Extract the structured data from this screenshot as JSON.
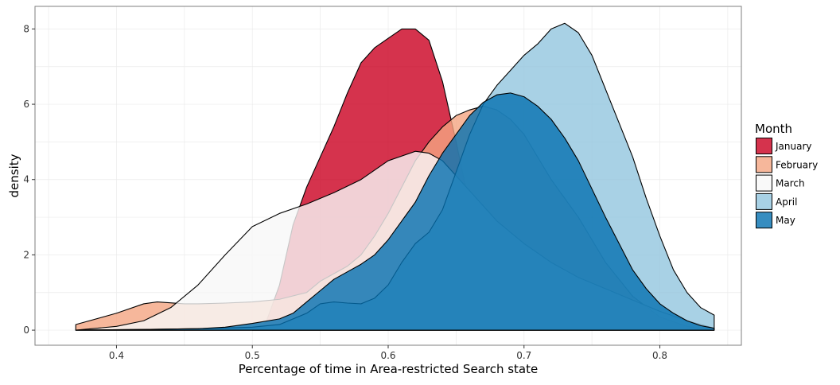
{
  "chart_data": {
    "type": "area",
    "subtype": "density",
    "title": "",
    "xlabel": "Percentage of time in Area-restricted Search state",
    "ylabel": "density",
    "xlim": [
      0.34,
      0.86
    ],
    "ylim": [
      -0.4,
      8.6
    ],
    "x_ticks": [
      0.4,
      0.5,
      0.6,
      0.7,
      0.8
    ],
    "y_ticks": [
      0,
      2,
      4,
      6,
      8
    ],
    "grid": true,
    "legend": {
      "title": "Month",
      "placement": "right"
    },
    "series": [
      {
        "name": "January",
        "color": "#ca0020",
        "opacity": 0.8,
        "points": [
          [
            0.5,
            0.0
          ],
          [
            0.51,
            0.2
          ],
          [
            0.52,
            1.2
          ],
          [
            0.53,
            2.8
          ],
          [
            0.54,
            3.8
          ],
          [
            0.55,
            4.6
          ],
          [
            0.56,
            5.4
          ],
          [
            0.57,
            6.3
          ],
          [
            0.58,
            7.1
          ],
          [
            0.59,
            7.5
          ],
          [
            0.6,
            7.75
          ],
          [
            0.61,
            8.0
          ],
          [
            0.62,
            8.0
          ],
          [
            0.63,
            7.7
          ],
          [
            0.64,
            6.6
          ],
          [
            0.65,
            5.0
          ],
          [
            0.66,
            3.3
          ],
          [
            0.67,
            2.5
          ],
          [
            0.68,
            2.1
          ],
          [
            0.69,
            1.8
          ],
          [
            0.7,
            1.5
          ],
          [
            0.72,
            1.1
          ],
          [
            0.74,
            0.85
          ],
          [
            0.76,
            0.7
          ],
          [
            0.78,
            0.5
          ],
          [
            0.8,
            0.3
          ],
          [
            0.82,
            0.1
          ],
          [
            0.84,
            0.0
          ]
        ]
      },
      {
        "name": "February",
        "color": "#f4a582",
        "opacity": 0.8,
        "points": [
          [
            0.37,
            0.15
          ],
          [
            0.4,
            0.45
          ],
          [
            0.42,
            0.7
          ],
          [
            0.43,
            0.75
          ],
          [
            0.45,
            0.7
          ],
          [
            0.46,
            0.7
          ],
          [
            0.48,
            0.72
          ],
          [
            0.5,
            0.75
          ],
          [
            0.52,
            0.82
          ],
          [
            0.54,
            1.0
          ],
          [
            0.55,
            1.3
          ],
          [
            0.57,
            1.7
          ],
          [
            0.58,
            2.0
          ],
          [
            0.59,
            2.5
          ],
          [
            0.6,
            3.1
          ],
          [
            0.61,
            3.8
          ],
          [
            0.62,
            4.5
          ],
          [
            0.63,
            5.0
          ],
          [
            0.64,
            5.4
          ],
          [
            0.65,
            5.7
          ],
          [
            0.66,
            5.85
          ],
          [
            0.67,
            5.95
          ],
          [
            0.68,
            5.85
          ],
          [
            0.69,
            5.6
          ],
          [
            0.7,
            5.2
          ],
          [
            0.71,
            4.6
          ],
          [
            0.72,
            4.0
          ],
          [
            0.74,
            3.0
          ],
          [
            0.76,
            1.8
          ],
          [
            0.78,
            0.9
          ],
          [
            0.8,
            0.35
          ],
          [
            0.82,
            0.1
          ],
          [
            0.84,
            0.0
          ]
        ]
      },
      {
        "name": "March",
        "color": "#f7f7f7",
        "opacity": 0.8,
        "points": [
          [
            0.37,
            0.0
          ],
          [
            0.4,
            0.1
          ],
          [
            0.42,
            0.25
          ],
          [
            0.44,
            0.6
          ],
          [
            0.46,
            1.2
          ],
          [
            0.48,
            2.0
          ],
          [
            0.5,
            2.75
          ],
          [
            0.52,
            3.1
          ],
          [
            0.54,
            3.35
          ],
          [
            0.56,
            3.65
          ],
          [
            0.58,
            4.0
          ],
          [
            0.6,
            4.5
          ],
          [
            0.62,
            4.75
          ],
          [
            0.63,
            4.7
          ],
          [
            0.64,
            4.5
          ],
          [
            0.65,
            4.1
          ],
          [
            0.66,
            3.7
          ],
          [
            0.67,
            3.3
          ],
          [
            0.68,
            2.9
          ],
          [
            0.7,
            2.3
          ],
          [
            0.72,
            1.8
          ],
          [
            0.74,
            1.4
          ],
          [
            0.76,
            1.1
          ],
          [
            0.78,
            0.8
          ],
          [
            0.8,
            0.5
          ],
          [
            0.82,
            0.25
          ],
          [
            0.84,
            0.05
          ]
        ]
      },
      {
        "name": "April",
        "color": "#92c5de",
        "opacity": 0.8,
        "points": [
          [
            0.37,
            0.0
          ],
          [
            0.42,
            0.02
          ],
          [
            0.46,
            0.04
          ],
          [
            0.5,
            0.08
          ],
          [
            0.52,
            0.15
          ],
          [
            0.54,
            0.45
          ],
          [
            0.55,
            0.7
          ],
          [
            0.56,
            0.75
          ],
          [
            0.57,
            0.72
          ],
          [
            0.58,
            0.7
          ],
          [
            0.59,
            0.85
          ],
          [
            0.6,
            1.2
          ],
          [
            0.61,
            1.8
          ],
          [
            0.62,
            2.3
          ],
          [
            0.63,
            2.6
          ],
          [
            0.64,
            3.2
          ],
          [
            0.65,
            4.2
          ],
          [
            0.66,
            5.2
          ],
          [
            0.67,
            6.0
          ],
          [
            0.68,
            6.5
          ],
          [
            0.69,
            6.9
          ],
          [
            0.7,
            7.3
          ],
          [
            0.71,
            7.6
          ],
          [
            0.72,
            8.0
          ],
          [
            0.73,
            8.15
          ],
          [
            0.74,
            7.9
          ],
          [
            0.75,
            7.3
          ],
          [
            0.76,
            6.4
          ],
          [
            0.77,
            5.5
          ],
          [
            0.78,
            4.6
          ],
          [
            0.79,
            3.5
          ],
          [
            0.8,
            2.5
          ],
          [
            0.81,
            1.6
          ],
          [
            0.82,
            1.0
          ],
          [
            0.83,
            0.6
          ],
          [
            0.84,
            0.4
          ]
        ]
      },
      {
        "name": "May",
        "color": "#0571b0",
        "opacity": 0.8,
        "points": [
          [
            0.37,
            0.0
          ],
          [
            0.42,
            0.02
          ],
          [
            0.46,
            0.04
          ],
          [
            0.48,
            0.08
          ],
          [
            0.5,
            0.18
          ],
          [
            0.52,
            0.3
          ],
          [
            0.53,
            0.45
          ],
          [
            0.54,
            0.75
          ],
          [
            0.55,
            1.05
          ],
          [
            0.56,
            1.35
          ],
          [
            0.57,
            1.55
          ],
          [
            0.58,
            1.75
          ],
          [
            0.59,
            2.0
          ],
          [
            0.6,
            2.4
          ],
          [
            0.61,
            2.9
          ],
          [
            0.62,
            3.4
          ],
          [
            0.63,
            4.1
          ],
          [
            0.64,
            4.7
          ],
          [
            0.65,
            5.2
          ],
          [
            0.66,
            5.7
          ],
          [
            0.67,
            6.05
          ],
          [
            0.68,
            6.25
          ],
          [
            0.69,
            6.3
          ],
          [
            0.7,
            6.2
          ],
          [
            0.71,
            5.95
          ],
          [
            0.72,
            5.6
          ],
          [
            0.73,
            5.1
          ],
          [
            0.74,
            4.5
          ],
          [
            0.75,
            3.75
          ],
          [
            0.76,
            3.0
          ],
          [
            0.77,
            2.3
          ],
          [
            0.78,
            1.6
          ],
          [
            0.79,
            1.1
          ],
          [
            0.8,
            0.7
          ],
          [
            0.81,
            0.45
          ],
          [
            0.82,
            0.25
          ],
          [
            0.83,
            0.12
          ],
          [
            0.84,
            0.05
          ]
        ]
      }
    ]
  }
}
